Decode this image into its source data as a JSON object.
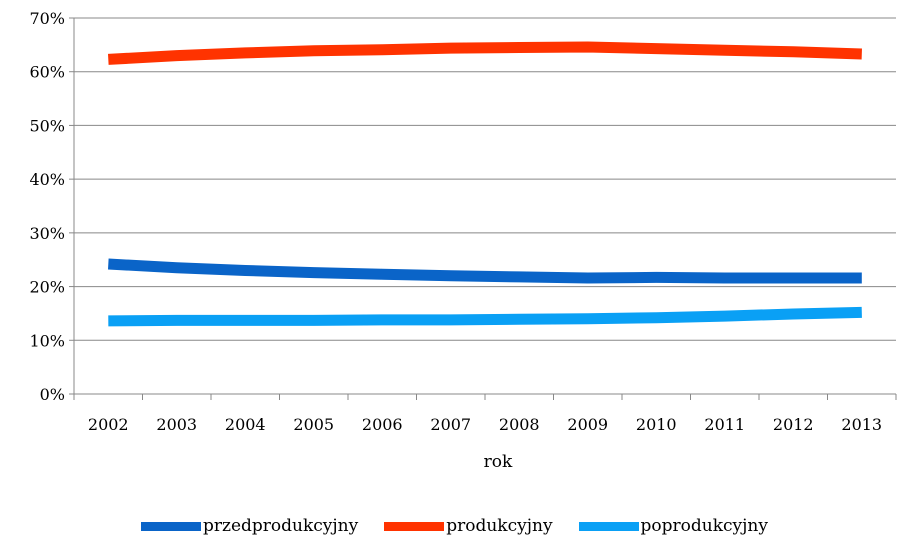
{
  "chart_data": {
    "type": "line",
    "title": "",
    "xlabel": "rok",
    "ylabel": "",
    "categories": [
      "2002",
      "2003",
      "2004",
      "2005",
      "2006",
      "2007",
      "2008",
      "2009",
      "2010",
      "2011",
      "2012",
      "2013"
    ],
    "ylim": [
      0,
      70
    ],
    "yticks": [
      0,
      10,
      20,
      30,
      40,
      50,
      60,
      70
    ],
    "ytick_labels": [
      "0%",
      "10%",
      "20%",
      "30%",
      "40%",
      "50%",
      "60%",
      "70%"
    ],
    "grid": true,
    "legend_position": "bottom",
    "series": [
      {
        "name": "przedprodukcyjny",
        "color": "#0a64c8",
        "values": [
          24.2,
          23.5,
          23.0,
          22.6,
          22.3,
          22.0,
          21.8,
          21.6,
          21.7,
          21.6,
          21.6,
          21.6
        ]
      },
      {
        "name": "produkcyjny",
        "color": "#ff3300",
        "values": [
          62.3,
          63.0,
          63.5,
          63.9,
          64.1,
          64.4,
          64.5,
          64.6,
          64.3,
          64.0,
          63.7,
          63.3
        ]
      },
      {
        "name": "poprodukcyjny",
        "color": "#0aa0f5",
        "values": [
          13.6,
          13.7,
          13.7,
          13.7,
          13.8,
          13.8,
          13.9,
          14.0,
          14.2,
          14.5,
          14.9,
          15.2
        ]
      }
    ]
  }
}
